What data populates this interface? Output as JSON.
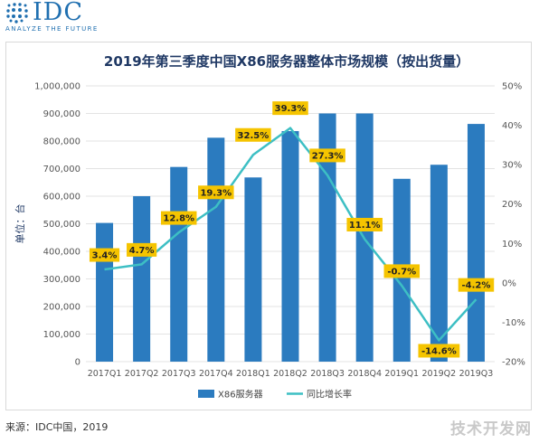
{
  "brand": {
    "name": "IDC",
    "tagline": "ANALYZE THE FUTURE"
  },
  "chart_data": {
    "type": "bar",
    "title": "2019年第三季度中国X86服务器整体市场规模（按出货量）",
    "ylabel": "单位：台",
    "categories": [
      "2017Q1",
      "2017Q2",
      "2017Q3",
      "2017Q4",
      "2018Q1",
      "2018Q2",
      "2018Q3",
      "2018Q4",
      "2019Q1",
      "2019Q2",
      "2019Q3"
    ],
    "series": [
      {
        "name": "X86服务器",
        "type": "bar",
        "axis": "left",
        "color": "#2b7bbf",
        "values": [
          503000,
          600000,
          706000,
          812000,
          668000,
          836000,
          900000,
          900000,
          663000,
          714000,
          862000
        ]
      },
      {
        "name": "同比增长率",
        "type": "line",
        "axis": "right",
        "color": "#3dbfc4",
        "values": [
          3.4,
          4.7,
          12.8,
          19.3,
          32.5,
          39.3,
          27.3,
          11.1,
          -0.7,
          -14.6,
          -4.2
        ],
        "labels": [
          "3.4%",
          "4.7%",
          "12.8%",
          "19.3%",
          "32.5%",
          "39.3%",
          "27.3%",
          "11.1%",
          "-0.7%",
          "-14.6%",
          "-4.2%"
        ]
      }
    ],
    "left_axis": {
      "ylim": [
        0,
        1000000
      ],
      "ticks": [
        "0",
        "100,000",
        "200,000",
        "300,000",
        "400,000",
        "500,000",
        "600,000",
        "700,000",
        "800,000",
        "900,000",
        "1,000,000"
      ]
    },
    "right_axis": {
      "ylim": [
        -20,
        50
      ],
      "ticks": [
        "-20%",
        "-10%",
        "0%",
        "10%",
        "20%",
        "30%",
        "40%",
        "50%"
      ]
    },
    "grid": true,
    "legend_position": "bottom",
    "label_color": "#f5c400"
  },
  "source": "来源：IDC中国，2019",
  "watermark": "技术开发网"
}
